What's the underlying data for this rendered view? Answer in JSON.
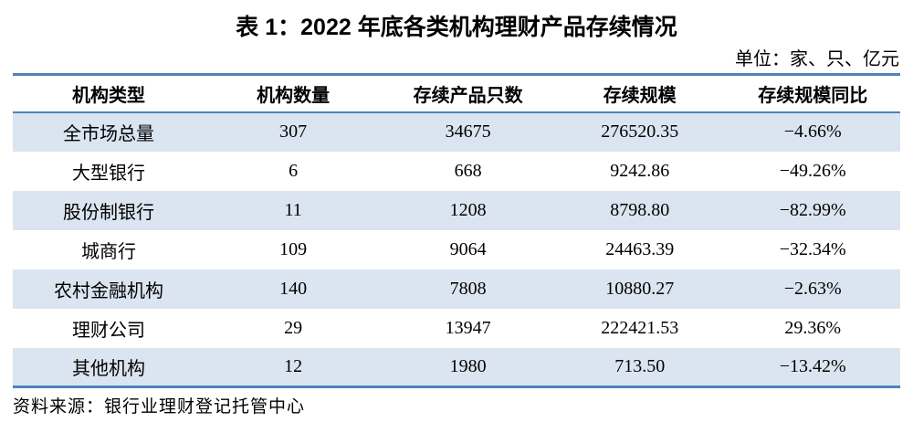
{
  "title": "表 1：2022 年底各类机构理财产品存续情况",
  "unit_note": "单位：家、只、亿元",
  "table": {
    "headers": [
      "机构类型",
      "机构数量",
      "存续产品只数",
      "存续规模",
      "存续规模同比"
    ],
    "rows": [
      [
        "全市场总量",
        "307",
        "34675",
        "276520.35",
        "−4.66%"
      ],
      [
        "大型银行",
        "6",
        "668",
        "9242.86",
        "−49.26%"
      ],
      [
        "股份制银行",
        "11",
        "1208",
        "8798.80",
        "−82.99%"
      ],
      [
        "城商行",
        "109",
        "9064",
        "24463.39",
        "−32.34%"
      ],
      [
        "农村金融机构",
        "140",
        "7808",
        "10880.27",
        "−2.63%"
      ],
      [
        "理财公司",
        "29",
        "13947",
        "222421.53",
        "29.36%"
      ],
      [
        "其他机构",
        "12",
        "1980",
        "713.50",
        "−13.42%"
      ]
    ]
  },
  "source_note": "资料来源：银行业理财登记托管中心",
  "colors": {
    "border_blue": "#4f81bd",
    "stripe_blue": "#dbe5f1",
    "text_black": "#000000",
    "page_bg": "#ffffff"
  }
}
